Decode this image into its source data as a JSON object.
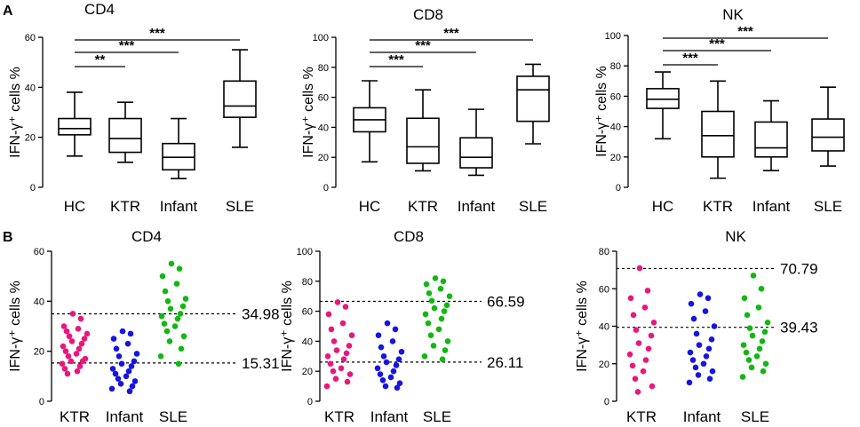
{
  "panel_labels": [
    "A",
    "B"
  ],
  "chart_data": [
    {
      "panel": "A",
      "type": "box",
      "title": "CD4",
      "ylabel": "IFN-γ⁺ cells %",
      "ylim": [
        0,
        60
      ],
      "yticks": [
        "0",
        "20",
        "40",
        "60"
      ],
      "categories": [
        "HC",
        "KTR",
        "Infant",
        "SLE"
      ],
      "boxes": [
        {
          "min": 12.5,
          "q1": 21,
          "median": 23.5,
          "q3": 27.5,
          "max": 38
        },
        {
          "min": 10,
          "q1": 14,
          "median": 19.5,
          "q3": 27.5,
          "max": 34
        },
        {
          "min": 3.5,
          "q1": 7,
          "median": 12,
          "q3": 17.5,
          "max": 27.5
        },
        {
          "min": 16,
          "q1": 28,
          "median": 32.5,
          "q3": 42.5,
          "max": 55
        }
      ],
      "comparisons": [
        {
          "from": "HC",
          "to": "KTR",
          "label": "**"
        },
        {
          "from": "HC",
          "to": "Infant",
          "label": "***"
        },
        {
          "from": "HC",
          "to": "SLE",
          "label": "***"
        }
      ]
    },
    {
      "panel": "A",
      "type": "box",
      "title": "CD8",
      "ylabel": "IFN-γ⁺ cells %",
      "ylim": [
        0,
        100
      ],
      "yticks": [
        "0",
        "20",
        "40",
        "60",
        "80",
        "100"
      ],
      "categories": [
        "HC",
        "KTR",
        "Infant",
        "SLE"
      ],
      "boxes": [
        {
          "min": 17,
          "q1": 37,
          "median": 45,
          "q3": 53,
          "max": 71
        },
        {
          "min": 11,
          "q1": 16,
          "median": 27,
          "q3": 46,
          "max": 65
        },
        {
          "min": 8,
          "q1": 13,
          "median": 20,
          "q3": 33,
          "max": 52
        },
        {
          "min": 29,
          "q1": 44,
          "median": 65,
          "q3": 74,
          "max": 82
        }
      ],
      "comparisons": [
        {
          "from": "HC",
          "to": "KTR",
          "label": "***"
        },
        {
          "from": "HC",
          "to": "Infant",
          "label": "***"
        },
        {
          "from": "HC",
          "to": "SLE",
          "label": "***"
        }
      ]
    },
    {
      "panel": "A",
      "type": "box",
      "title": "NK",
      "ylabel": "IFN-γ⁺ cells %",
      "ylim": [
        0,
        100
      ],
      "yticks": [
        "0",
        "20",
        "40",
        "60",
        "80",
        "100"
      ],
      "categories": [
        "HC",
        "KTR",
        "Infant",
        "SLE"
      ],
      "boxes": [
        {
          "min": 32,
          "q1": 52,
          "median": 58,
          "q3": 65,
          "max": 76
        },
        {
          "min": 6,
          "q1": 20,
          "median": 34,
          "q3": 50,
          "max": 70
        },
        {
          "min": 11,
          "q1": 20,
          "median": 26,
          "q3": 43,
          "max": 57
        },
        {
          "min": 14,
          "q1": 24,
          "median": 33,
          "q3": 45,
          "max": 66
        }
      ],
      "comparisons": [
        {
          "from": "HC",
          "to": "KTR",
          "label": "***"
        },
        {
          "from": "HC",
          "to": "Infant",
          "label": "***"
        },
        {
          "from": "HC",
          "to": "SLE",
          "label": "***"
        }
      ]
    },
    {
      "panel": "B",
      "type": "scatter",
      "title": "CD4",
      "ylabel": "IFN-γ⁺ cells %",
      "ylim": [
        0,
        60
      ],
      "yticks": [
        "0",
        "20",
        "40",
        "60"
      ],
      "categories": [
        "KTR",
        "Infant",
        "SLE"
      ],
      "colors": [
        "#e8177d",
        "#1515e0",
        "#10b810"
      ],
      "thresholds": [
        {
          "value": 34.98,
          "label": "34.98"
        },
        {
          "value": 15.31,
          "label": "15.31"
        }
      ],
      "points": [
        [
          35,
          33,
          30,
          29,
          28,
          27,
          26,
          25,
          24,
          23,
          22,
          21,
          20,
          19,
          18,
          17,
          16,
          16,
          15,
          14,
          13,
          12,
          11
        ],
        [
          28,
          27,
          25,
          23,
          21,
          19,
          18,
          16,
          15,
          14,
          13,
          12,
          11,
          10,
          9,
          8,
          7,
          6,
          5,
          4
        ],
        [
          55,
          53,
          50,
          47,
          44,
          41,
          40,
          38,
          37,
          35,
          34,
          33,
          31,
          30,
          28,
          26,
          24,
          21,
          18,
          15
        ]
      ]
    },
    {
      "panel": "B",
      "type": "scatter",
      "title": "CD8",
      "ylabel": "IFN-γ⁺ cells %",
      "ylim": [
        0,
        100
      ],
      "yticks": [
        "0",
        "20",
        "40",
        "60",
        "80",
        "100"
      ],
      "categories": [
        "KTR",
        "Infant",
        "SLE"
      ],
      "colors": [
        "#e8177d",
        "#1515e0",
        "#10b810"
      ],
      "thresholds": [
        {
          "value": 66.59,
          "label": "66.59"
        },
        {
          "value": 26.11,
          "label": "26.11"
        }
      ],
      "points": [
        [
          66,
          63,
          58,
          52,
          48,
          44,
          40,
          37,
          34,
          32,
          30,
          28,
          25,
          22,
          20,
          18,
          15,
          13,
          10
        ],
        [
          52,
          48,
          44,
          40,
          36,
          33,
          30,
          28,
          26,
          24,
          22,
          20,
          18,
          16,
          14,
          12,
          10,
          9
        ],
        [
          82,
          80,
          78,
          75,
          72,
          70,
          67,
          64,
          62,
          60,
          58,
          55,
          52,
          48,
          44,
          40,
          37,
          34,
          30,
          28
        ]
      ]
    },
    {
      "panel": "B",
      "type": "scatter",
      "title": "NK",
      "ylabel": "IFN-γ⁺ cells %",
      "ylim": [
        0,
        80
      ],
      "yticks": [
        "0",
        "20",
        "40",
        "60",
        "80"
      ],
      "categories": [
        "KTR",
        "Infant",
        "SLE"
      ],
      "colors": [
        "#e8177d",
        "#1515e0",
        "#10b810"
      ],
      "thresholds": [
        {
          "value": 70.79,
          "label": "70.79"
        },
        {
          "value": 39.43,
          "label": "39.43"
        }
      ],
      "points": [
        [
          71,
          59,
          55,
          50,
          46,
          42,
          38,
          35,
          31,
          28,
          25,
          22,
          19,
          16,
          12,
          8,
          5
        ],
        [
          57,
          55,
          52,
          48,
          44,
          40,
          36,
          33,
          30,
          28,
          26,
          24,
          22,
          20,
          18,
          16,
          14,
          12,
          10
        ],
        [
          67,
          60,
          55,
          50,
          46,
          42,
          39,
          37,
          35,
          32,
          30,
          28,
          26,
          24,
          22,
          20,
          18,
          16,
          13
        ]
      ]
    }
  ]
}
